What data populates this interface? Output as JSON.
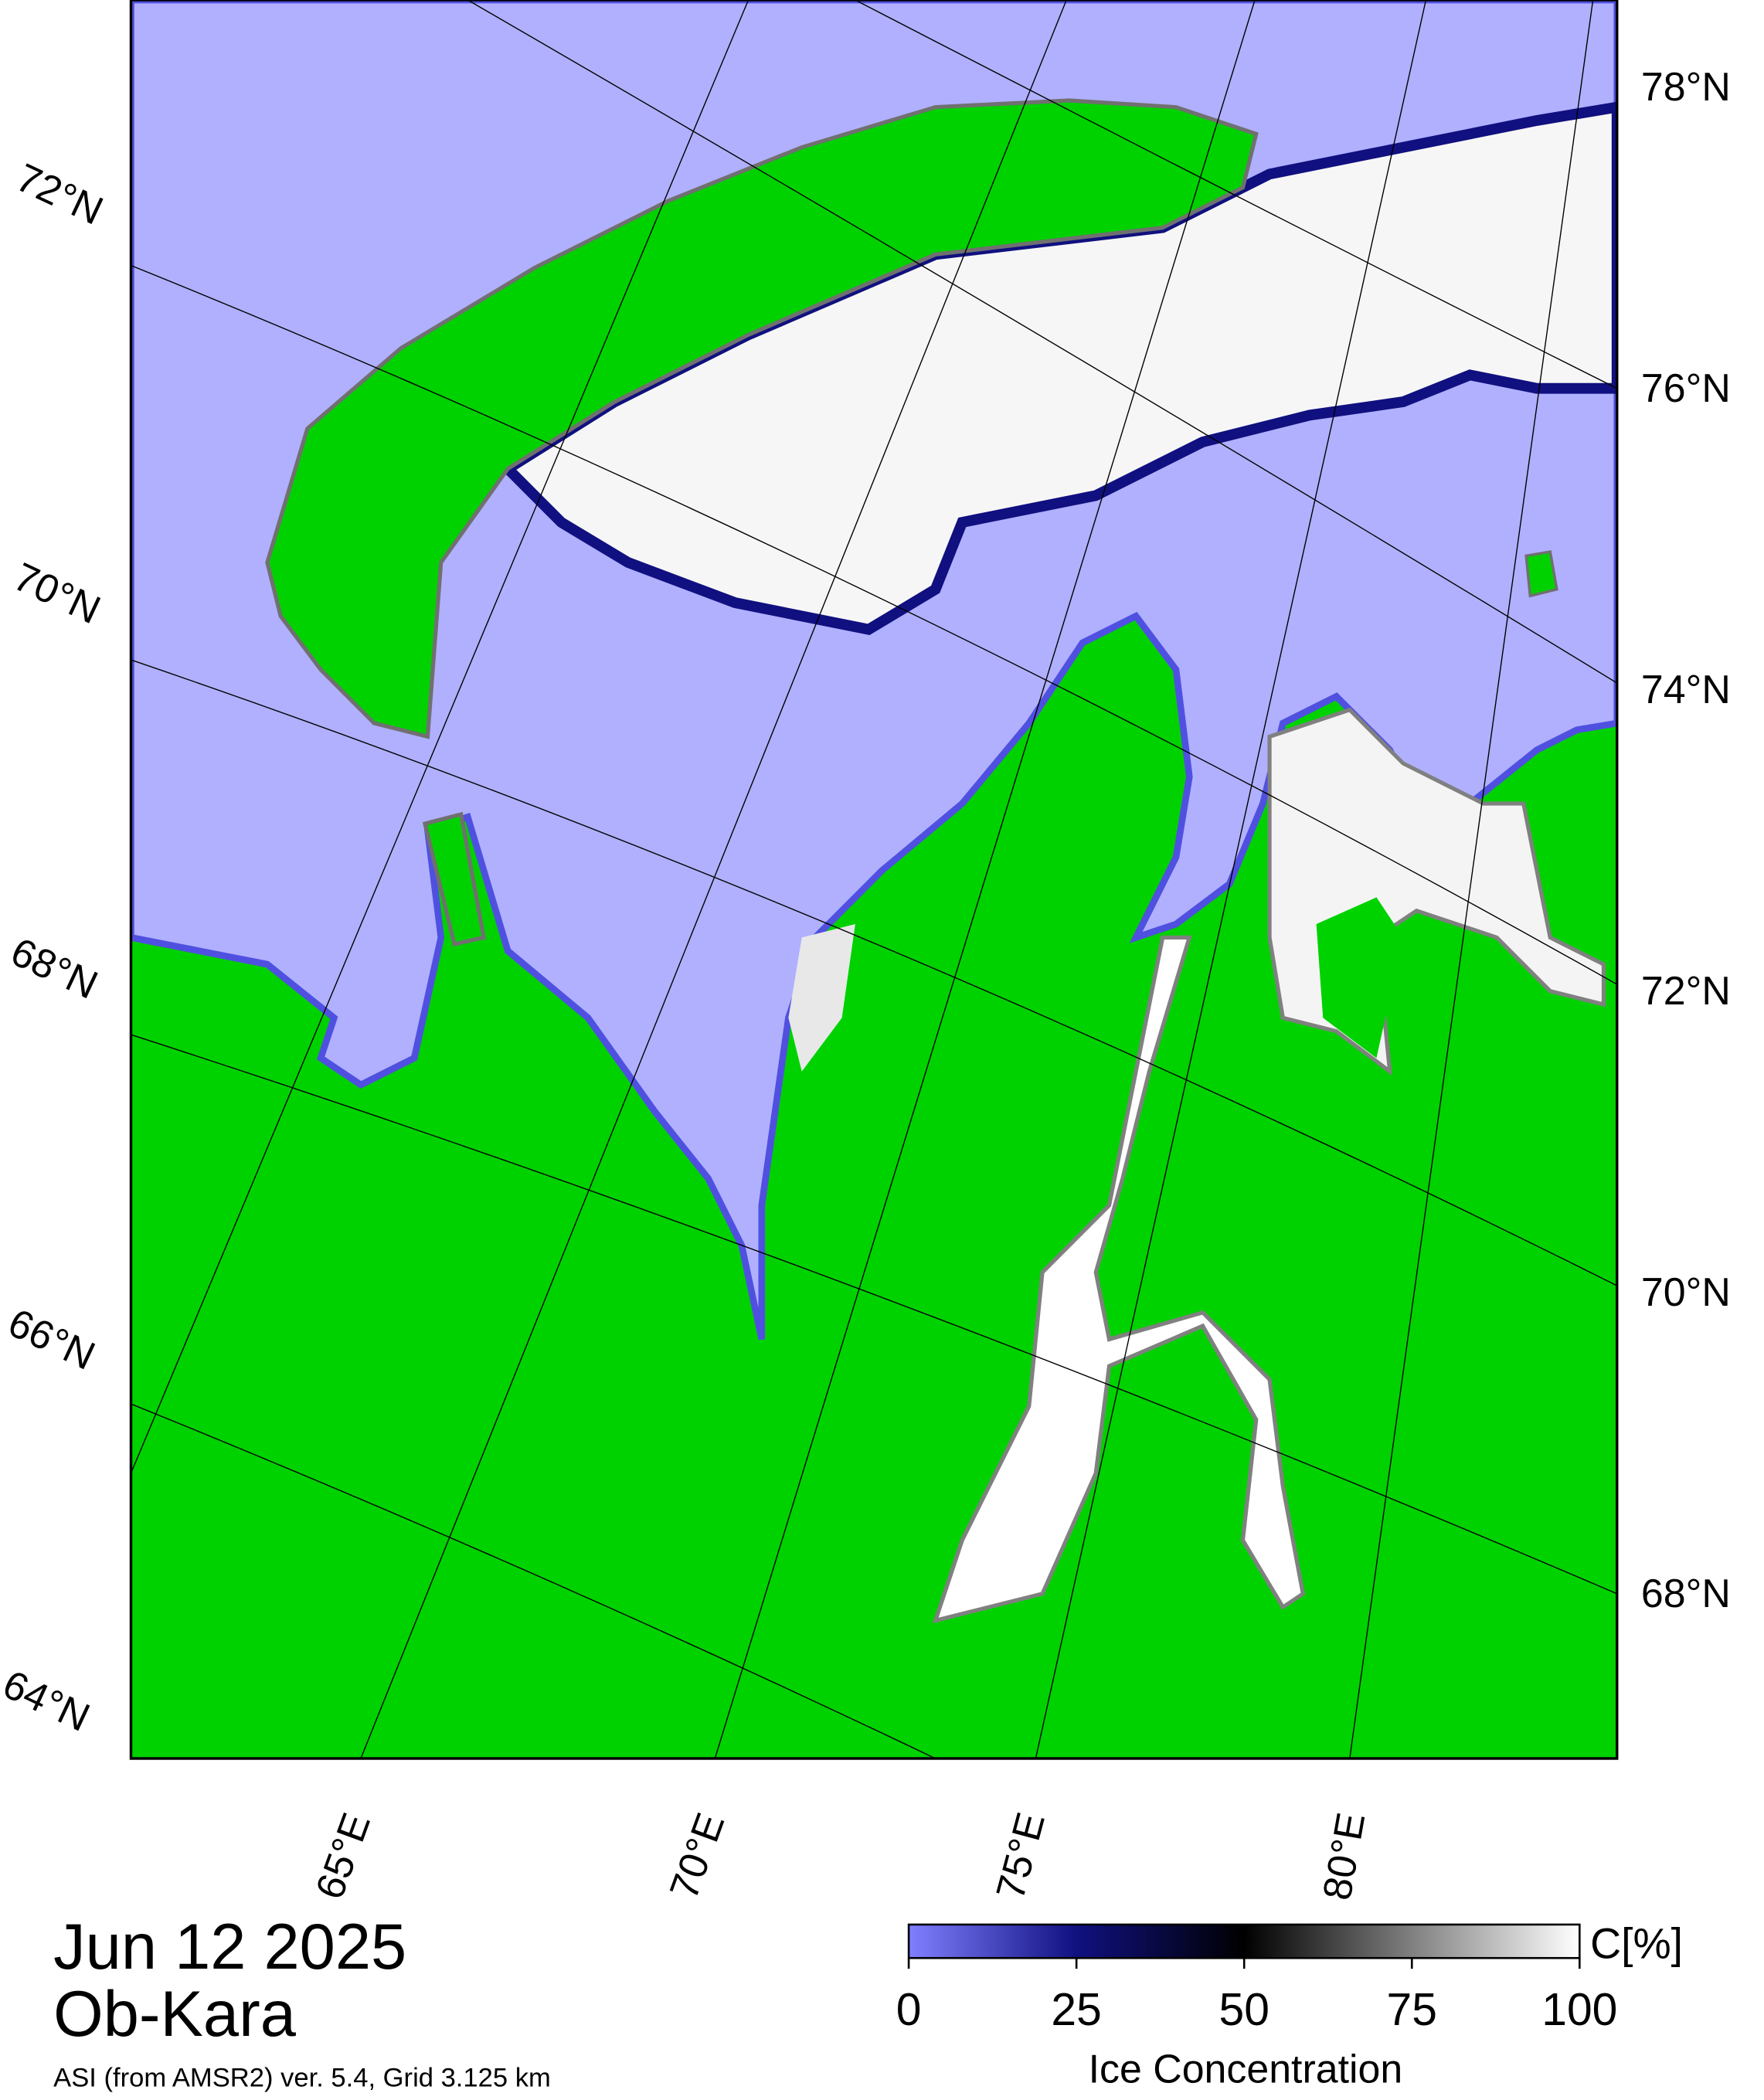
{
  "map": {
    "lat_labels_right": [
      "78°N",
      "76°N",
      "74°N",
      "72°N",
      "70°N",
      "68°N"
    ],
    "lat_labels_left": [
      "72°N",
      "70°N",
      "68°N",
      "66°N",
      "64°N"
    ],
    "lon_labels": [
      "65°E",
      "70°E",
      "75°E",
      "80°E"
    ]
  },
  "caption": {
    "date": "Jun 12 2025",
    "region": "Ob-Kara",
    "source": "ASI (from AMSR2) ver. 5.4,  Grid 3.125 km"
  },
  "colorbar": {
    "range": [
      0,
      100
    ],
    "ticks": [
      0,
      25,
      50,
      75,
      100
    ],
    "unit": "C[%]",
    "label": "Ice Concentration"
  }
}
